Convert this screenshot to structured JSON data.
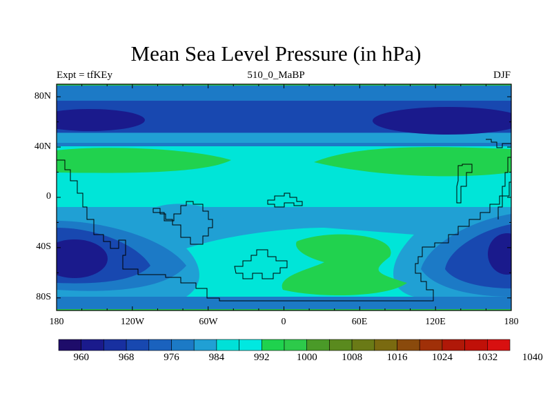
{
  "title": "Mean Sea Level Pressure (in hPa)",
  "subtitle_left": "Expt = tfKEy",
  "subtitle_center": "510_0_MaBP",
  "subtitle_right": "DJF",
  "lat_labels": [
    "80N",
    "40N",
    "0",
    "40S",
    "80S"
  ],
  "lon_labels": [
    "180",
    "120W",
    "60W",
    "0",
    "60E",
    "120E",
    "180"
  ],
  "colorbar": {
    "labels": [
      "960",
      "968",
      "976",
      "984",
      "992",
      "1000",
      "1008",
      "1016",
      "1024",
      "1032",
      "1040"
    ],
    "colors": [
      "#1e0c6a",
      "#1a1a8c",
      "#1830a0",
      "#1848b0",
      "#1a62be",
      "#1c7ac6",
      "#20a0d4",
      "#00e0d8",
      "#00e8e0",
      "#1fd24e",
      "#2dca4a",
      "#4a9a28",
      "#5a8a1e",
      "#6a7a16",
      "#7a6a10",
      "#8a4a0c",
      "#a03008",
      "#b01808",
      "#c01008",
      "#d81010"
    ]
  },
  "map": {
    "projection": "cylindrical-equidistant",
    "lon_range": [
      -180,
      180
    ],
    "lat_range": [
      -90,
      90
    ],
    "field_colors": {
      "dark": "#1a1a8c",
      "blue": "#1848b0",
      "mid": "#1c7ac6",
      "light": "#20a0d4",
      "cyan": "#00e5d8",
      "green": "#21d24e"
    }
  }
}
